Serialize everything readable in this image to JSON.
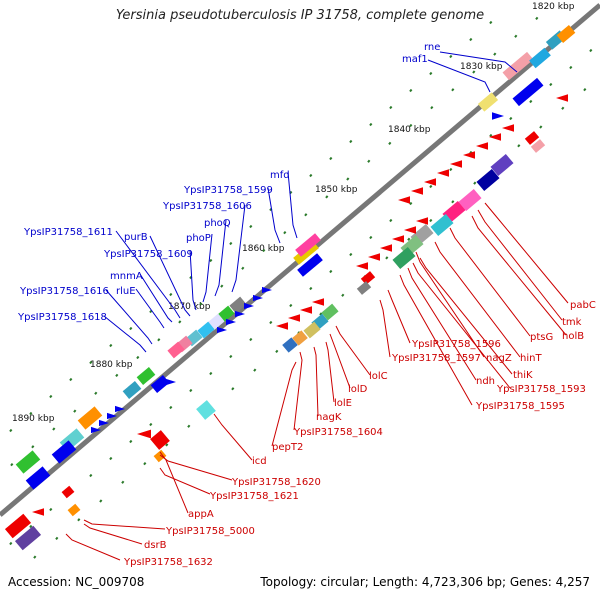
{
  "title": "Yersinia pseudotuberculosis IP 31758, complete genome",
  "accession": "Accession: NC_009708",
  "summary": "Topology: circular; Length: 4,723,306 bp; Genes: 4,257",
  "colors": {
    "backbone": "#777777",
    "ticks": "#2a7a2a",
    "forward_label": "#0000cc",
    "reverse_label": "#cc0000",
    "forward_gene": "#0000ee",
    "reverse_gene": "#ee0000"
  },
  "scale_labels": [
    "1820 kbp",
    "1830 kbp",
    "1840 kbp",
    "1850 kbp",
    "1860 kbp",
    "1870 kbp",
    "1880 kbp",
    "1890 kbp"
  ],
  "forward_gene_labels": [
    "rne",
    "maf1",
    "mfd",
    "YpsIP31758_1599",
    "YpsIP31758_1606",
    "phoQ",
    "phoP",
    "YpsIP31758_1609",
    "purB",
    "YpsIP31758_1611",
    "mnmA",
    "rluE",
    "YpsIP31758_1616",
    "YpsIP31758_1618"
  ],
  "reverse_gene_labels": [
    "pabC",
    "tmk",
    "holB",
    "ptsG",
    "hinT",
    "nagZ",
    "thiK",
    "YpsIP31758_1593",
    "ndh",
    "YpsIP31758_1595",
    "YpsIP31758_1596",
    "YpsIP31758_1597",
    "lolC",
    "lolD",
    "lolE",
    "nagK",
    "YpsIP31758_1604",
    "pepT2",
    "icd",
    "YpsIP31758_1620",
    "YpsIP31758_1621",
    "appA",
    "YpsIP31758_5000",
    "dsrB",
    "YpsIP31758_1632"
  ]
}
